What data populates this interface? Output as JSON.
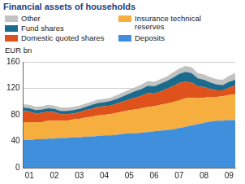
{
  "chart_data": {
    "type": "area",
    "title": "Financial assets of households",
    "y_label": "EUR bn",
    "stacked": true,
    "grid": true,
    "legend": "top",
    "categories": [
      null,
      "01",
      null,
      null,
      null,
      "02",
      null,
      null,
      null,
      "03",
      null,
      null,
      null,
      "04",
      null,
      null,
      null,
      "05",
      null,
      null,
      null,
      "06",
      null,
      null,
      null,
      "07",
      null,
      null,
      null,
      "08",
      null,
      null,
      null,
      "09",
      null
    ],
    "ylim": [
      0,
      160
    ],
    "yticks": [
      0,
      40,
      80,
      120,
      160
    ],
    "series": [
      {
        "name": "Deposits",
        "color": "#3f8fdc",
        "values": [
          42,
          42,
          43,
          43,
          44,
          44,
          45,
          45,
          46,
          46,
          47,
          47,
          48,
          49,
          49,
          50,
          51,
          52,
          52,
          53,
          54,
          55,
          56,
          57,
          58,
          60,
          62,
          64,
          66,
          68,
          70,
          71,
          71,
          72,
          72
        ]
      },
      {
        "name": "Insurance technical reserves",
        "color": "#f6ae3f",
        "values": [
          27,
          27,
          26,
          26,
          27,
          27,
          26,
          26,
          27,
          28,
          29,
          30,
          31,
          31,
          32,
          33,
          34,
          35,
          36,
          37,
          38,
          38,
          39,
          40,
          41,
          42,
          43,
          42,
          39,
          38,
          37,
          36,
          37,
          38,
          39
        ]
      },
      {
        "name": "Domestic quoted shares",
        "color": "#e0521c",
        "values": [
          17,
          16,
          13,
          14,
          14,
          13,
          10,
          10,
          9,
          10,
          11,
          12,
          13,
          13,
          13,
          14,
          15,
          16,
          18,
          19,
          21,
          19,
          20,
          22,
          24,
          26,
          25,
          23,
          18,
          16,
          12,
          10,
          9,
          11,
          13
        ]
      },
      {
        "name": "Fund shares",
        "color": "#1b6b8c",
        "values": [
          5,
          5,
          5,
          5,
          5,
          5,
          5,
          5,
          5,
          5,
          5,
          6,
          6,
          6,
          7,
          7,
          8,
          9,
          10,
          10,
          11,
          11,
          12,
          12,
          13,
          14,
          15,
          14,
          12,
          11,
          10,
          9,
          8,
          9,
          9
        ]
      },
      {
        "name": "Other",
        "color": "#c2c2c2",
        "values": [
          5,
          5,
          5,
          5,
          5,
          5,
          5,
          5,
          5,
          5,
          5,
          5,
          5,
          5,
          5,
          6,
          6,
          6,
          6,
          7,
          7,
          7,
          7,
          7,
          8,
          8,
          9,
          9,
          8,
          8,
          8,
          8,
          8,
          9,
          10
        ]
      }
    ]
  }
}
